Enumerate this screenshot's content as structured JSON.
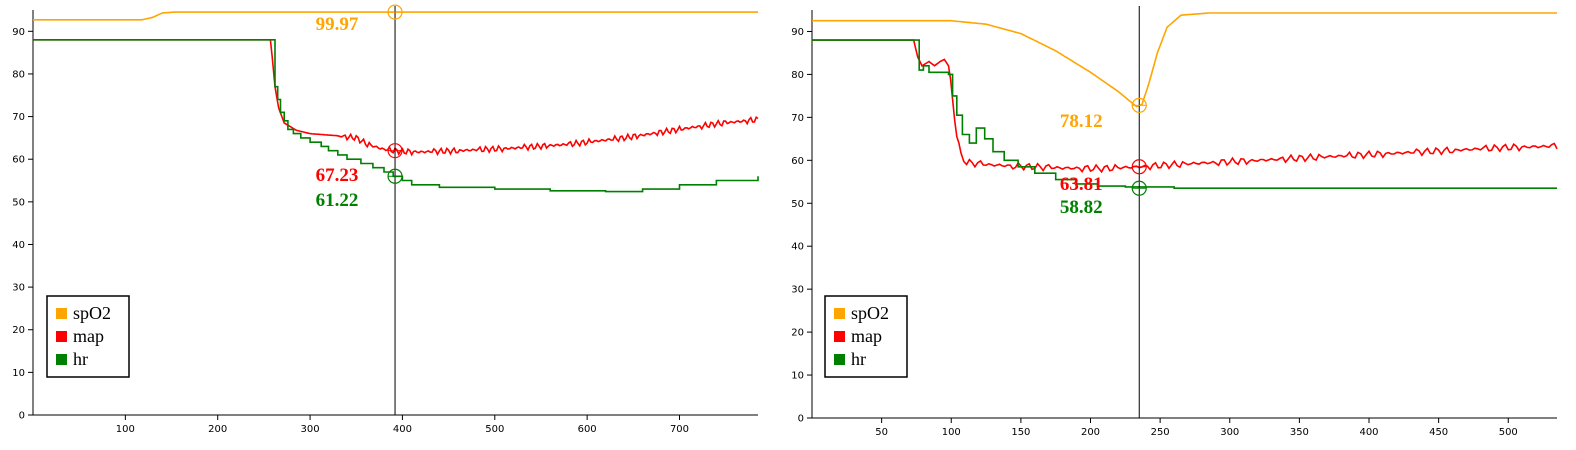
{
  "chart_data": [
    {
      "type": "line",
      "xlim": [
        0,
        785
      ],
      "ylim": [
        0,
        95
      ],
      "xticks": [
        100,
        200,
        300,
        400,
        500,
        600,
        700
      ],
      "yticks": [
        0,
        10,
        20,
        30,
        40,
        50,
        60,
        70,
        80,
        90
      ],
      "cursor_x": 392,
      "legend": {
        "position": "bottom-left",
        "entries": [
          "spO2",
          "map",
          "hr"
        ]
      },
      "readouts": [
        {
          "series": "spO2",
          "x": 392,
          "y": 94.5,
          "text": "99.97"
        },
        {
          "series": "map",
          "x": 392,
          "y": 62,
          "text": "67.23"
        },
        {
          "series": "hr",
          "x": 392,
          "y": 56,
          "text": "61.22"
        }
      ],
      "series": [
        {
          "name": "spO2",
          "color": "#ffa500",
          "step": false,
          "wiggle": 0,
          "points": [
            [
              0,
              92.7
            ],
            [
              118,
              92.7
            ],
            [
              130,
              93.3
            ],
            [
              140,
              94.3
            ],
            [
              152,
              94.5
            ],
            [
              785,
              94.5
            ]
          ]
        },
        {
          "name": "map",
          "color": "#ff0000",
          "step": false,
          "wiggle": 0.7,
          "points": [
            [
              0,
              88
            ],
            [
              257,
              88
            ],
            [
              259,
              84
            ],
            [
              262,
              77
            ],
            [
              266,
              72
            ],
            [
              272,
              68.5
            ],
            [
              285,
              66.8
            ],
            [
              300,
              66
            ],
            [
              330,
              65.5
            ],
            [
              350,
              65
            ],
            [
              362,
              63.5
            ],
            [
              380,
              62.3
            ],
            [
              400,
              61.8
            ],
            [
              420,
              61.7
            ],
            [
              460,
              62
            ],
            [
              520,
              62.6
            ],
            [
              580,
              63.5
            ],
            [
              640,
              65
            ],
            [
              700,
              67
            ],
            [
              740,
              68.3
            ],
            [
              785,
              69.3
            ]
          ]
        },
        {
          "name": "hr",
          "color": "#008000",
          "step": true,
          "wiggle": 0,
          "points": [
            [
              0,
              88
            ],
            [
              258,
              88
            ],
            [
              262,
              77
            ],
            [
              265,
              74
            ],
            [
              268,
              71
            ],
            [
              272,
              69
            ],
            [
              276,
              67
            ],
            [
              282,
              66
            ],
            [
              290,
              65
            ],
            [
              300,
              64
            ],
            [
              312,
              63
            ],
            [
              320,
              62
            ],
            [
              330,
              61
            ],
            [
              340,
              60
            ],
            [
              355,
              59
            ],
            [
              368,
              58
            ],
            [
              380,
              57
            ],
            [
              390,
              56
            ],
            [
              400,
              55
            ],
            [
              410,
              54
            ],
            [
              440,
              53.4
            ],
            [
              500,
              53
            ],
            [
              560,
              52.6
            ],
            [
              620,
              52.4
            ],
            [
              660,
              53
            ],
            [
              700,
              54
            ],
            [
              740,
              55
            ],
            [
              785,
              56
            ]
          ]
        }
      ]
    },
    {
      "type": "line",
      "xlim": [
        0,
        535
      ],
      "ylim": [
        0,
        95
      ],
      "xticks": [
        50,
        100,
        150,
        200,
        250,
        300,
        350,
        400,
        450,
        500
      ],
      "yticks": [
        0,
        10,
        20,
        30,
        40,
        50,
        60,
        70,
        80,
        90
      ],
      "cursor_x": 235,
      "legend": {
        "position": "bottom-left",
        "entries": [
          "spO2",
          "map",
          "hr"
        ]
      },
      "readouts": [
        {
          "series": "spO2",
          "x": 235,
          "y": 72.8,
          "text": "78.12"
        },
        {
          "series": "map",
          "x": 235,
          "y": 58.5,
          "text": "63.81"
        },
        {
          "series": "hr",
          "x": 235,
          "y": 53.5,
          "text": "58.82"
        }
      ],
      "series": [
        {
          "name": "spO2",
          "color": "#ffa500",
          "step": false,
          "wiggle": 0,
          "points": [
            [
              0,
              92.5
            ],
            [
              100,
              92.5
            ],
            [
              125,
              91.7
            ],
            [
              150,
              89.5
            ],
            [
              175,
              85.5
            ],
            [
              200,
              80.5
            ],
            [
              220,
              76
            ],
            [
              233,
              72.5
            ],
            [
              237,
              73
            ],
            [
              242,
              78
            ],
            [
              248,
              85
            ],
            [
              255,
              91
            ],
            [
              265,
              93.8
            ],
            [
              285,
              94.3
            ],
            [
              535,
              94.3
            ]
          ]
        },
        {
          "name": "map",
          "color": "#ff0000",
          "step": false,
          "wiggle": 0.8,
          "points": [
            [
              0,
              88
            ],
            [
              73,
              88
            ],
            [
              76,
              84
            ],
            [
              79,
              82
            ],
            [
              84,
              83
            ],
            [
              88,
              82
            ],
            [
              92,
              83
            ],
            [
              95,
              83.5
            ],
            [
              98,
              82
            ],
            [
              101,
              74
            ],
            [
              104,
              66
            ],
            [
              107,
              61
            ],
            [
              111,
              59.5
            ],
            [
              125,
              59
            ],
            [
              150,
              58.6
            ],
            [
              180,
              58.2
            ],
            [
              210,
              58.1
            ],
            [
              235,
              58.5
            ],
            [
              270,
              59.2
            ],
            [
              320,
              60
            ],
            [
              380,
              61
            ],
            [
              440,
              62
            ],
            [
              500,
              63
            ],
            [
              535,
              63.3
            ]
          ]
        },
        {
          "name": "hr",
          "color": "#008000",
          "step": true,
          "wiggle": 0,
          "points": [
            [
              0,
              88
            ],
            [
              74,
              88
            ],
            [
              77,
              81
            ],
            [
              80,
              82
            ],
            [
              84,
              80.5
            ],
            [
              98,
              80
            ],
            [
              101,
              75
            ],
            [
              104,
              70.5
            ],
            [
              108,
              66
            ],
            [
              113,
              64
            ],
            [
              118,
              67.5
            ],
            [
              124,
              65
            ],
            [
              130,
              62
            ],
            [
              138,
              60
            ],
            [
              148,
              58.5
            ],
            [
              160,
              57
            ],
            [
              175,
              55.5
            ],
            [
              190,
              54.5
            ],
            [
              205,
              54
            ],
            [
              225,
              53.8
            ],
            [
              260,
              53.5
            ],
            [
              320,
              53.5
            ],
            [
              400,
              53.5
            ],
            [
              535,
              53.5
            ]
          ]
        }
      ]
    }
  ]
}
